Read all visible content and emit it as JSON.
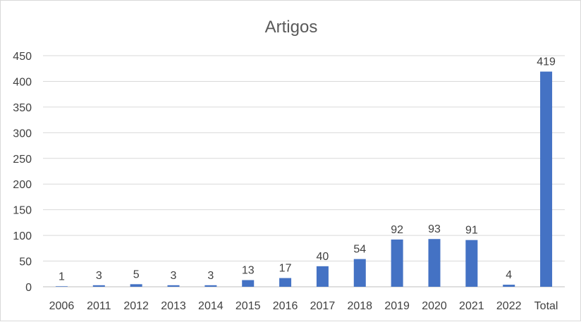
{
  "chart_data": {
    "type": "bar",
    "title": "Artigos",
    "xlabel": "",
    "ylabel": "",
    "categories": [
      "2006",
      "2011",
      "2012",
      "2013",
      "2014",
      "2015",
      "2016",
      "2017",
      "2018",
      "2019",
      "2020",
      "2021",
      "2022",
      "Total"
    ],
    "values": [
      1,
      3,
      5,
      3,
      3,
      13,
      17,
      40,
      54,
      92,
      93,
      91,
      4,
      419
    ],
    "ylim": [
      0,
      450
    ],
    "yticks": [
      0,
      50,
      100,
      150,
      200,
      250,
      300,
      350,
      400,
      450
    ],
    "grid": true,
    "legend": "none",
    "data_labels": true,
    "colors": {
      "bar": "#4472C4",
      "grid": "#d9d9d9",
      "text": "#404040",
      "title": "#595959"
    }
  }
}
